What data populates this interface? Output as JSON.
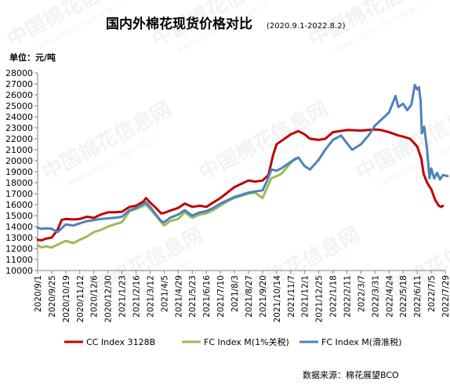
{
  "chart_data": {
    "type": "line",
    "title": "国内外棉花现货价格对比",
    "subtitle": "(2020.9.1-2022.8.2)",
    "ylabel": "单位：元/吨",
    "ylim": [
      10000,
      28000
    ],
    "ytick_step": 1000,
    "grid": false,
    "legend_position": "bottom",
    "source_note": "数据来源：棉花展望BCO",
    "watermark": "中国棉花信息网 www.cottonchina.org.cn",
    "x_ticks": [
      "2020/9/1",
      "2020/9/25",
      "2020/10/19",
      "2020/11/12",
      "2020/12/6",
      "2020/12/30",
      "2021/1/23",
      "2021/2/16",
      "2021/3/12",
      "2021/4/5",
      "2021/4/29",
      "2021/5/23",
      "2021/6/16",
      "2021/7/10",
      "2021/8/3",
      "2021/8/27",
      "2021/9/20",
      "2021/10/14",
      "2021/11/7",
      "2021/12/1",
      "2021/12/25",
      "2022/1/18",
      "2022/2/11",
      "2022/3/7",
      "2022/3/31",
      "2022/4/24",
      "2022/5/18",
      "2022/6/11",
      "2022/7/5",
      "2022/7/29"
    ],
    "series": [
      {
        "name": "CC Index 3128B",
        "color": "#c00000",
        "points": [
          [
            "2020/9/1",
            12800
          ],
          [
            "2020/9/8",
            12750
          ],
          [
            "2020/9/15",
            12900
          ],
          [
            "2020/9/25",
            13000
          ],
          [
            "2020/10/5",
            13700
          ],
          [
            "2020/10/12",
            14600
          ],
          [
            "2020/10/19",
            14700
          ],
          [
            "2020/11/1",
            14650
          ],
          [
            "2020/11/12",
            14700
          ],
          [
            "2020/11/24",
            14900
          ],
          [
            "2020/12/6",
            14800
          ],
          [
            "2020/12/18",
            15100
          ],
          [
            "2020/12/30",
            15300
          ],
          [
            "2021/1/10",
            15300
          ],
          [
            "2021/1/23",
            15350
          ],
          [
            "2021/2/5",
            15800
          ],
          [
            "2021/2/16",
            15900
          ],
          [
            "2021/3/1",
            16300
          ],
          [
            "2021/3/5",
            16600
          ],
          [
            "2021/3/12",
            16200
          ],
          [
            "2021/3/22",
            15700
          ],
          [
            "2021/3/31",
            15200
          ],
          [
            "2021/4/5",
            15250
          ],
          [
            "2021/4/15",
            15450
          ],
          [
            "2021/4/29",
            15700
          ],
          [
            "2021/5/10",
            16100
          ],
          [
            "2021/5/23",
            15800
          ],
          [
            "2021/6/5",
            15900
          ],
          [
            "2021/6/16",
            15800
          ],
          [
            "2021/6/28",
            16200
          ],
          [
            "2021/7/10",
            16600
          ],
          [
            "2021/7/22",
            17100
          ],
          [
            "2021/8/3",
            17600
          ],
          [
            "2021/8/15",
            17900
          ],
          [
            "2021/8/27",
            18200
          ],
          [
            "2021/9/7",
            18100
          ],
          [
            "2021/9/20",
            18200
          ],
          [
            "2021/9/30",
            18700
          ],
          [
            "2021/10/8",
            20500
          ],
          [
            "2021/10/14",
            21500
          ],
          [
            "2021/10/22",
            21800
          ],
          [
            "2021/11/7",
            22400
          ],
          [
            "2021/11/20",
            22700
          ],
          [
            "2021/12/1",
            22400
          ],
          [
            "2021/12/10",
            22000
          ],
          [
            "2021/12/25",
            21900
          ],
          [
            "2022/1/5",
            22000
          ],
          [
            "2022/1/18",
            22600
          ],
          [
            "2022/2/11",
            22800
          ],
          [
            "2022/3/7",
            22750
          ],
          [
            "2022/3/31",
            22850
          ],
          [
            "2022/4/10",
            22800
          ],
          [
            "2022/4/24",
            22600
          ],
          [
            "2022/5/10",
            22300
          ],
          [
            "2022/5/18",
            22200
          ],
          [
            "2022/5/30",
            22000
          ],
          [
            "2022/6/11",
            21300
          ],
          [
            "2022/6/18",
            20200
          ],
          [
            "2022/6/22",
            18800
          ],
          [
            "2022/6/28",
            18000
          ],
          [
            "2022/7/5",
            17400
          ],
          [
            "2022/7/12",
            16400
          ],
          [
            "2022/7/18",
            15900
          ],
          [
            "2022/7/22",
            15800
          ],
          [
            "2022/7/25",
            15900
          ]
        ]
      },
      {
        "name": "FC Index M(1%关税)",
        "color": "#9bbb59",
        "points": [
          [
            "2020/9/1",
            12300
          ],
          [
            "2020/9/8",
            12100
          ],
          [
            "2020/9/15",
            12200
          ],
          [
            "2020/9/25",
            12100
          ],
          [
            "2020/10/19",
            12700
          ],
          [
            "2020/11/1",
            12500
          ],
          [
            "2020/11/12",
            12800
          ],
          [
            "2020/11/24",
            13100
          ],
          [
            "2020/12/6",
            13500
          ],
          [
            "2020/12/18",
            13700
          ],
          [
            "2020/12/30",
            14000
          ],
          [
            "2021/1/10",
            14200
          ],
          [
            "2021/1/23",
            14400
          ],
          [
            "2021/2/5",
            15400
          ],
          [
            "2021/2/16",
            15600
          ],
          [
            "2021/3/5",
            16000
          ],
          [
            "2021/3/12",
            15600
          ],
          [
            "2021/3/22",
            15000
          ],
          [
            "2021/3/31",
            14400
          ],
          [
            "2021/4/5",
            14100
          ],
          [
            "2021/4/15",
            14500
          ],
          [
            "2021/4/29",
            14700
          ],
          [
            "2021/5/10",
            15300
          ],
          [
            "2021/5/23",
            14800
          ],
          [
            "2021/6/5",
            15100
          ],
          [
            "2021/6/16",
            15200
          ],
          [
            "2021/6/28",
            15500
          ],
          [
            "2021/7/10",
            15900
          ],
          [
            "2021/7/22",
            16300
          ],
          [
            "2021/8/3",
            16600
          ],
          [
            "2021/8/15",
            16800
          ],
          [
            "2021/8/27",
            17000
          ],
          [
            "2021/9/7",
            17100
          ],
          [
            "2021/9/20",
            16600
          ],
          [
            "2021/10/5",
            18400
          ],
          [
            "2021/10/14",
            18600
          ],
          [
            "2021/10/22",
            18800
          ],
          [
            "2021/11/7",
            19800
          ],
          [
            "2021/11/14",
            20200
          ]
        ]
      },
      {
        "name": "FC Index M(滑准税)",
        "color": "#4f81bd",
        "points": [
          [
            "2020/9/1",
            13900
          ],
          [
            "2020/9/8",
            13800
          ],
          [
            "2020/9/15",
            13850
          ],
          [
            "2020/9/25",
            13800
          ],
          [
            "2020/10/5",
            13500
          ],
          [
            "2020/10/19",
            14200
          ],
          [
            "2020/11/1",
            14100
          ],
          [
            "2020/11/12",
            14300
          ],
          [
            "2020/11/24",
            14500
          ],
          [
            "2020/12/6",
            14600
          ],
          [
            "2020/12/18",
            14700
          ],
          [
            "2020/12/30",
            14750
          ],
          [
            "2021/1/10",
            14800
          ],
          [
            "2021/1/23",
            14900
          ],
          [
            "2021/2/5",
            15500
          ],
          [
            "2021/2/16",
            15700
          ],
          [
            "2021/3/5",
            16200
          ],
          [
            "2021/3/12",
            15800
          ],
          [
            "2021/3/22",
            15100
          ],
          [
            "2021/3/31",
            14500
          ],
          [
            "2021/4/5",
            14400
          ],
          [
            "2021/4/15",
            14800
          ],
          [
            "2021/4/29",
            15100
          ],
          [
            "2021/5/10",
            15500
          ],
          [
            "2021/5/23",
            15000
          ],
          [
            "2021/6/5",
            15300
          ],
          [
            "2021/6/16",
            15400
          ],
          [
            "2021/6/28",
            15700
          ],
          [
            "2021/7/10",
            16100
          ],
          [
            "2021/7/22",
            16400
          ],
          [
            "2021/8/3",
            16700
          ],
          [
            "2021/8/15",
            16900
          ],
          [
            "2021/8/27",
            17100
          ],
          [
            "2021/9/7",
            17200
          ],
          [
            "2021/9/20",
            17300
          ],
          [
            "2021/9/28",
            18200
          ],
          [
            "2021/10/5",
            19200
          ],
          [
            "2021/10/14",
            19100
          ],
          [
            "2021/10/22",
            19300
          ],
          [
            "2021/11/7",
            19900
          ],
          [
            "2021/11/20",
            20300
          ],
          [
            "2021/12/1",
            19500
          ],
          [
            "2021/12/10",
            19200
          ],
          [
            "2021/12/25",
            20100
          ],
          [
            "2022/1/5",
            21000
          ],
          [
            "2022/1/18",
            21900
          ],
          [
            "2022/2/1",
            22300
          ],
          [
            "2022/2/11",
            21600
          ],
          [
            "2022/2/20",
            21000
          ],
          [
            "2022/3/7",
            21500
          ],
          [
            "2022/3/20",
            22300
          ],
          [
            "2022/3/31",
            23200
          ],
          [
            "2022/4/10",
            23700
          ],
          [
            "2022/4/24",
            24400
          ],
          [
            "2022/5/5",
            25900
          ],
          [
            "2022/5/10",
            24900
          ],
          [
            "2022/5/18",
            25200
          ],
          [
            "2022/5/25",
            24600
          ],
          [
            "2022/6/1",
            25100
          ],
          [
            "2022/6/7",
            26900
          ],
          [
            "2022/6/11",
            26500
          ],
          [
            "2022/6/14",
            26700
          ],
          [
            "2022/6/17",
            25400
          ],
          [
            "2022/6/19",
            22500
          ],
          [
            "2022/6/23",
            23100
          ],
          [
            "2022/6/28",
            21000
          ],
          [
            "2022/7/2",
            18400
          ],
          [
            "2022/7/5",
            19300
          ],
          [
            "2022/7/10",
            18400
          ],
          [
            "2022/7/15",
            18900
          ],
          [
            "2022/7/20",
            18300
          ],
          [
            "2022/7/25",
            18700
          ],
          [
            "2022/8/2",
            18600
          ]
        ]
      }
    ]
  }
}
